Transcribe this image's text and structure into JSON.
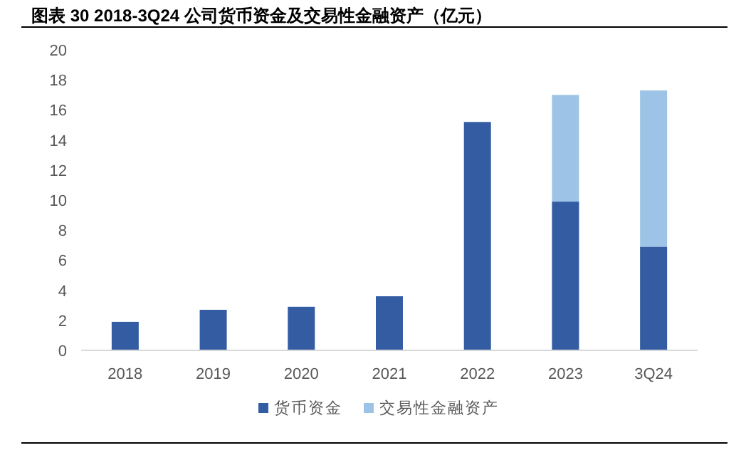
{
  "chart_data": {
    "type": "bar",
    "title": "图表 30 2018-3Q24 公司货币资金及交易性金融资产（亿元）",
    "categories": [
      "2018",
      "2019",
      "2020",
      "2021",
      "2022",
      "2023",
      "3Q24"
    ],
    "series": [
      {
        "name": "货币资金",
        "color": "#335ca3",
        "values": [
          1.9,
          2.7,
          2.9,
          3.6,
          15.2,
          9.9,
          6.9
        ]
      },
      {
        "name": "交易性金融资产",
        "color": "#9dc3e6",
        "values": [
          0,
          0,
          0,
          0,
          0,
          7.1,
          10.4
        ]
      }
    ],
    "stacked": true,
    "ylim": [
      0,
      20
    ],
    "yticks": [
      0,
      2,
      4,
      6,
      8,
      10,
      12,
      14,
      16,
      18,
      20
    ],
    "legend": "bottom"
  }
}
